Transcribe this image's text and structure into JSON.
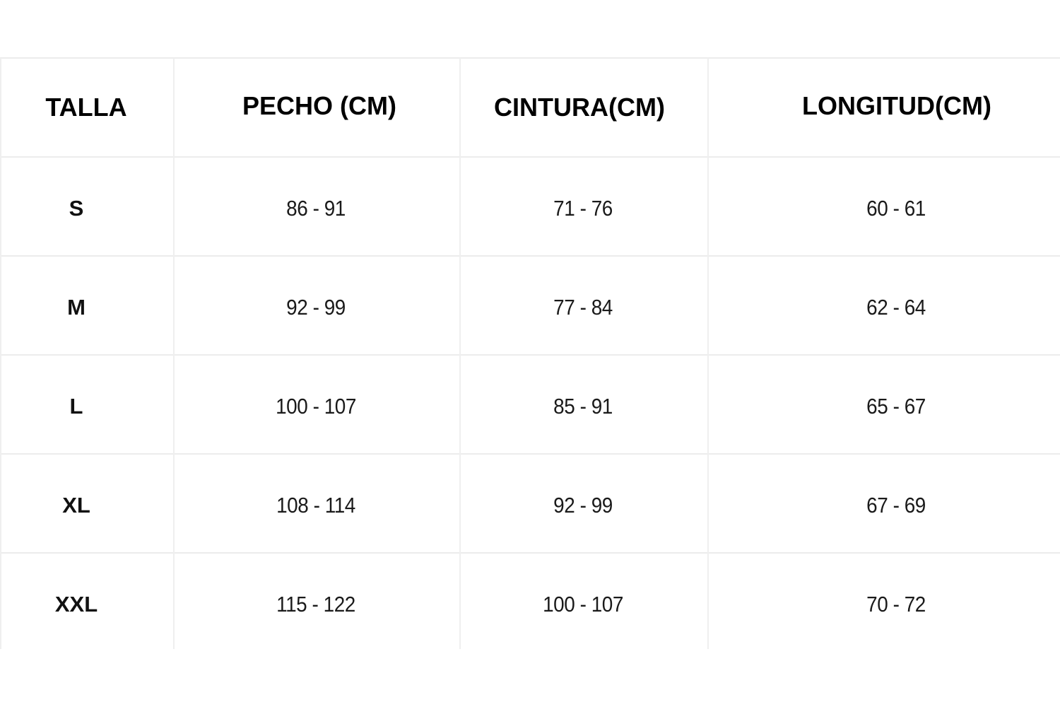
{
  "table": {
    "headers": [
      "TALLA",
      "PECHO (CM)",
      "CINTURA(CM)",
      "LONGITUD(CM)"
    ],
    "rows": [
      [
        "S",
        "86 - 91",
        "71 - 76",
        "60 - 61"
      ],
      [
        "M",
        "92 - 99",
        "77 - 84",
        "62 - 64"
      ],
      [
        "L",
        "100 - 107",
        "85 - 91",
        "65 - 67"
      ],
      [
        "XL",
        "108 - 114",
        "92 - 99",
        "67 - 69"
      ],
      [
        "XXL",
        "115 - 122",
        "100 - 107",
        "70 - 72"
      ]
    ]
  }
}
